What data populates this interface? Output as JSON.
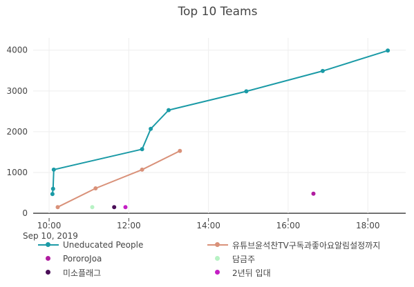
{
  "chart_data": {
    "type": "line",
    "title": "Top 10 Teams",
    "xlabel": "",
    "ylabel": "",
    "x_axis": {
      "ticks": [
        "10:00",
        "12:00",
        "14:00",
        "16:00",
        "18:00"
      ],
      "tick_hours": [
        10,
        12,
        14,
        16,
        18
      ],
      "range_hours": [
        9.6,
        18.95
      ],
      "date_label": "Sep 10, 2019"
    },
    "y_axis": {
      "ticks": [
        "0",
        "1000",
        "2000",
        "3000",
        "4000"
      ],
      "tick_values": [
        0,
        1000,
        2000,
        3000,
        4000
      ],
      "range": [
        -100,
        4300
      ]
    },
    "grid": true,
    "legend_position": "bottom",
    "series": [
      {
        "name": "Uneducated People",
        "color": "#1a9aa6",
        "mode": "lines+markers",
        "points": [
          {
            "x": "10:05",
            "y": 470
          },
          {
            "x": "10:06",
            "y": 600
          },
          {
            "x": "10:07",
            "y": 1070
          },
          {
            "x": "12:20",
            "y": 1570
          },
          {
            "x": "12:33",
            "y": 2070
          },
          {
            "x": "13:00",
            "y": 2530
          },
          {
            "x": "14:57",
            "y": 2990
          },
          {
            "x": "16:52",
            "y": 3490
          },
          {
            "x": "18:30",
            "y": 3990
          }
        ]
      },
      {
        "name": "유튜브윤석찬TV구독과좋아요알림설정까지",
        "color": "#d99179",
        "mode": "lines+markers",
        "points": [
          {
            "x": "10:13",
            "y": 150
          },
          {
            "x": "11:10",
            "y": 610
          },
          {
            "x": "12:20",
            "y": 1070
          },
          {
            "x": "13:17",
            "y": 1530
          }
        ]
      },
      {
        "name": "PororoJoa",
        "color": "#b01ca0",
        "mode": "markers",
        "points": [
          {
            "x": "16:38",
            "y": 480
          }
        ]
      },
      {
        "name": "담금주",
        "color": "#b7f2c4",
        "mode": "markers",
        "points": [
          {
            "x": "11:05",
            "y": 150
          }
        ]
      },
      {
        "name": "미소플래그",
        "color": "#4a0e57",
        "mode": "markers",
        "points": [
          {
            "x": "11:38",
            "y": 150
          }
        ]
      },
      {
        "name": "2년뒤 입대",
        "color": "#c41ec4",
        "mode": "markers",
        "points": [
          {
            "x": "11:55",
            "y": 150
          }
        ]
      }
    ]
  }
}
